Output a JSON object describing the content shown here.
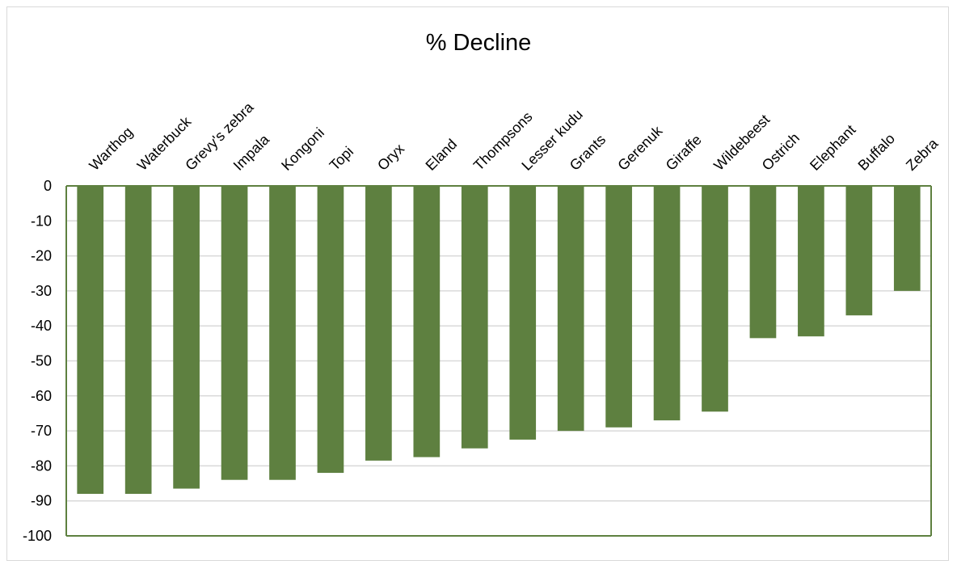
{
  "chart_data": {
    "type": "bar",
    "title": "% Decline",
    "categories": [
      "Warthog",
      "Waterbuck",
      "Grevy's zebra",
      "Impala",
      "Kongoni",
      "Topi",
      "Oryx",
      "Eland",
      "Thompsons",
      "Lesser kudu",
      "Grants",
      "Gerenuk",
      "Giraffe",
      "Wildebeest",
      "Ostrich",
      "Elephant",
      "Buffalo",
      "Zebra"
    ],
    "series": [
      {
        "values": [
          -88,
          -88,
          -86.5,
          -84,
          -84,
          -82,
          -78.5,
          -77.5,
          -75,
          -72.5,
          -70,
          -69,
          -67,
          -64.5,
          -43.5,
          -43,
          -37,
          -30
        ]
      }
    ],
    "xlabel": "",
    "ylabel": "",
    "ylim": [
      -100,
      0
    ],
    "yticks": [
      0,
      -10,
      -20,
      -30,
      -40,
      -50,
      -60,
      -70,
      -80,
      -90,
      -100
    ],
    "grid": true,
    "bar_color": "#5e8040",
    "axis_color": "#5e8040",
    "grid_color": "#d9d9d9",
    "category_axis_position": "top",
    "legend": "none"
  }
}
